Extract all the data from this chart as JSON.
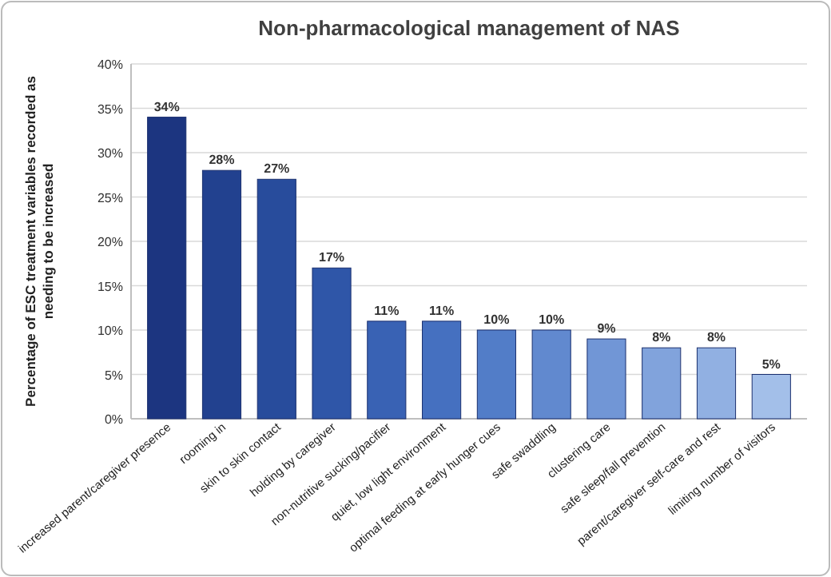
{
  "chart_data": {
    "type": "bar",
    "title": "Non-pharmacological management of NAS",
    "ylabel": "Percentage of ESC treatment variables recorded as\nneeding to be  increased",
    "categories": [
      "increased parent/caregiver presence",
      "rooming in",
      "skin to skin contact",
      "holding by caregiver",
      "non-nutritive sucking/pacifier",
      "quiet, low light environment",
      "optimal feeding at early hunger cues",
      "safe swaddling",
      "clustering care",
      "safe sleep/fall prevention",
      "parent/caregiver self-care and rest",
      "limiting number of visitors"
    ],
    "values": [
      34,
      28,
      27,
      17,
      11,
      11,
      10,
      10,
      9,
      8,
      8,
      5
    ],
    "value_labels": [
      "34%",
      "28%",
      "27%",
      "17%",
      "11%",
      "11%",
      "10%",
      "10%",
      "9%",
      "8%",
      "8%",
      "5%"
    ],
    "colors": [
      "#1c3580",
      "#22418f",
      "#284c9c",
      "#2f56a8",
      "#3962b4",
      "#4570c0",
      "#527dc8",
      "#6189cf",
      "#7196d6",
      "#81a3dc",
      "#91b0e2",
      "#a3bfe9"
    ],
    "ylim": [
      0,
      40
    ],
    "yticks": [
      {
        "value": 0,
        "label": "0%"
      },
      {
        "value": 5,
        "label": "5%"
      },
      {
        "value": 10,
        "label": "10%"
      },
      {
        "value": 15,
        "label": "15%"
      },
      {
        "value": 20,
        "label": "20%"
      },
      {
        "value": 25,
        "label": "25%"
      },
      {
        "value": 30,
        "label": "30%"
      },
      {
        "value": 35,
        "label": "35%"
      },
      {
        "value": 40,
        "label": "40%"
      }
    ],
    "grid": true
  }
}
